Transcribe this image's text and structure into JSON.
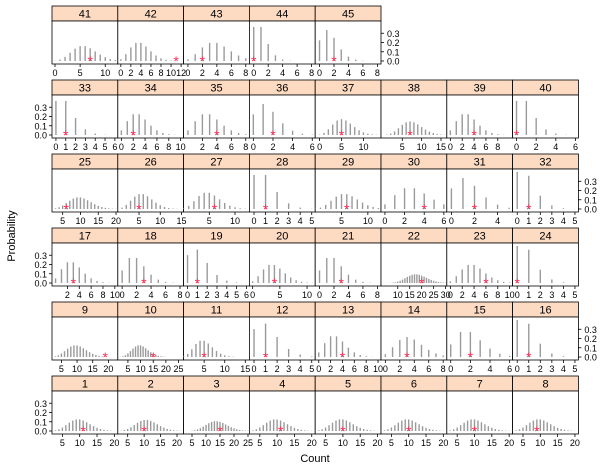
{
  "chart_data": {
    "type": "bar",
    "title": "",
    "xlabel": "Count",
    "ylabel": "Probability",
    "ylim": [
      0,
      0.4
    ],
    "y_ticks": [
      "0.0",
      "0.1",
      "0.2",
      "0.3"
    ],
    "strip_color": "#fddbc3",
    "bar_color": "#9a9a9a",
    "marker_color": "#ff2d55",
    "layout": "8 panels per row, 6 rows, top row has 5 panels",
    "panels": [
      {
        "id": "41",
        "mean": 6.0,
        "obs": 7,
        "xlim": [
          -0.6,
          12.5
        ],
        "xticks": [
          0,
          5,
          10
        ]
      },
      {
        "id": "42",
        "mean": 4.0,
        "obs": 11,
        "xlim": [
          -0.6,
          12.5
        ],
        "xticks": [
          0,
          2,
          4,
          6,
          8,
          10,
          12
        ]
      },
      {
        "id": "43",
        "mean": 4.0,
        "obs": 2,
        "xlim": [
          -0.6,
          8.5
        ],
        "xticks": [
          0,
          2,
          4,
          6,
          8
        ]
      },
      {
        "id": "44",
        "mean": 1.0,
        "obs": 0,
        "xlim": [
          -0.6,
          8.5
        ],
        "xticks": [
          0,
          2,
          4,
          6,
          8
        ]
      },
      {
        "id": "45",
        "mean": 1.5,
        "obs": 2,
        "xlim": [
          -0.6,
          8.5
        ],
        "xticks": [
          0,
          2,
          4,
          6,
          8
        ]
      },
      {
        "id": "33",
        "mean": 1.0,
        "obs": 1,
        "xlim": [
          -0.4,
          6.3
        ],
        "xticks": [
          0,
          1,
          2,
          3,
          4,
          5,
          6
        ]
      },
      {
        "id": "34",
        "mean": 3.0,
        "obs": 2,
        "xlim": [
          -0.6,
          10.5
        ],
        "xticks": [
          0,
          2,
          4,
          6,
          8,
          10
        ]
      },
      {
        "id": "35",
        "mean": 3.0,
        "obs": 4,
        "xlim": [
          -0.6,
          8.5
        ],
        "xticks": [
          2,
          4,
          6,
          8
        ]
      },
      {
        "id": "36",
        "mean": 1.5,
        "obs": 2,
        "xlim": [
          -0.4,
          6.3
        ],
        "xticks": [
          0,
          2,
          4,
          6
        ]
      },
      {
        "id": "37",
        "mean": 5.5,
        "obs": 5,
        "xlim": [
          -1.0,
          14.0
        ],
        "xticks": [
          0,
          5,
          10
        ]
      },
      {
        "id": "38",
        "mean": 7.5,
        "obs": 7,
        "xlim": [
          -0.5,
          16.5
        ],
        "xticks": [
          5,
          10,
          15
        ]
      },
      {
        "id": "39",
        "mean": 3.0,
        "obs": 4,
        "xlim": [
          -0.6,
          10.5
        ],
        "xticks": [
          0,
          2,
          4,
          6,
          8
        ]
      },
      {
        "id": "40",
        "mean": 1.0,
        "obs": 0,
        "xlim": [
          -0.4,
          6.3
        ],
        "xticks": [
          0,
          2,
          4,
          6
        ]
      },
      {
        "id": "25",
        "mean": 10.0,
        "obs": 6,
        "xlim": [
          2.0,
          20.5
        ],
        "xticks": [
          5,
          10,
          15,
          20
        ]
      },
      {
        "id": "26",
        "mean": 6.0,
        "obs": 5,
        "xlim": [
          0.0,
          15.5
        ],
        "xticks": [
          5,
          10,
          15
        ]
      },
      {
        "id": "27",
        "mean": 5.0,
        "obs": 6,
        "xlim": [
          0.0,
          12.8
        ],
        "xticks": [
          5,
          10
        ]
      },
      {
        "id": "28",
        "mean": 1.0,
        "obs": 1,
        "xlim": [
          -0.4,
          5.3
        ],
        "xticks": [
          0,
          1,
          2,
          3,
          4,
          5
        ]
      },
      {
        "id": "29",
        "mean": 6.0,
        "obs": 6,
        "xlim": [
          0.0,
          12.5
        ],
        "xticks": [
          5,
          10
        ]
      },
      {
        "id": "30",
        "mean": 3.0,
        "obs": 4,
        "xlim": [
          -0.4,
          6.3
        ],
        "xticks": [
          0,
          2,
          4,
          6
        ]
      },
      {
        "id": "31",
        "mean": 1.5,
        "obs": 2,
        "xlim": [
          -0.4,
          5.3
        ],
        "xticks": [
          0,
          2,
          4
        ]
      },
      {
        "id": "32",
        "mean": 0.8,
        "obs": 1,
        "xlim": [
          -0.4,
          5.3
        ],
        "xticks": [
          0,
          1,
          2,
          3,
          4,
          5
        ]
      },
      {
        "id": "17",
        "mean": 3.0,
        "obs": 3,
        "xlim": [
          -0.6,
          10.5
        ],
        "xticks": [
          2,
          4,
          6,
          8,
          10
        ]
      },
      {
        "id": "18",
        "mean": 2.0,
        "obs": 3,
        "xlim": [
          -0.6,
          8.5
        ],
        "xticks": [
          0,
          2,
          4,
          6,
          8
        ]
      },
      {
        "id": "19",
        "mean": 1.2,
        "obs": 1,
        "xlim": [
          -0.4,
          6.3
        ],
        "xticks": [
          0,
          1,
          2,
          3,
          4,
          5,
          6
        ]
      },
      {
        "id": "20",
        "mean": 4.0,
        "obs": 4,
        "xlim": [
          -0.6,
          11.5
        ],
        "xticks": [
          0,
          5,
          10
        ]
      },
      {
        "id": "21",
        "mean": 2.0,
        "obs": 3,
        "xlim": [
          -0.6,
          8.5
        ],
        "xticks": [
          0,
          2,
          4,
          6,
          8
        ]
      },
      {
        "id": "22",
        "mean": 18.0,
        "obs": 20,
        "xlim": [
          3.0,
          30.5
        ],
        "xticks": [
          10,
          15,
          20,
          25,
          30
        ]
      },
      {
        "id": "23",
        "mean": 4.0,
        "obs": 6,
        "xlim": [
          -0.6,
          10.5
        ],
        "xticks": [
          0,
          2,
          4,
          6,
          8,
          10
        ]
      },
      {
        "id": "24",
        "mean": 0.8,
        "obs": 0,
        "xlim": [
          -0.4,
          5.3
        ],
        "xticks": [
          0,
          1,
          2,
          3,
          4,
          5
        ]
      },
      {
        "id": "9",
        "mean": 10.0,
        "obs": 19,
        "xlim": [
          2.0,
          23.0
        ],
        "xticks": [
          5,
          10,
          15,
          20
        ]
      },
      {
        "id": "10",
        "mean": 10.0,
        "obs": 15,
        "xlim": [
          1.0,
          27.0
        ],
        "xticks": [
          5,
          10,
          15,
          20,
          25
        ]
      },
      {
        "id": "11",
        "mean": 5.0,
        "obs": 5,
        "xlim": [
          0.0,
          16.0
        ],
        "xticks": [
          5,
          10,
          15
        ]
      },
      {
        "id": "12",
        "mean": 1.2,
        "obs": 1,
        "xlim": [
          -0.4,
          5.3
        ],
        "xticks": [
          0,
          1,
          2,
          3,
          4,
          5
        ]
      },
      {
        "id": "13",
        "mean": 3.0,
        "obs": 4,
        "xlim": [
          -0.6,
          10.5
        ],
        "xticks": [
          0,
          2,
          4,
          6,
          8,
          10
        ]
      },
      {
        "id": "14",
        "mean": 3.5,
        "obs": 3,
        "xlim": [
          -0.6,
          8.5
        ],
        "xticks": [
          0,
          2,
          4,
          6,
          8
        ]
      },
      {
        "id": "15",
        "mean": 2.0,
        "obs": 2,
        "xlim": [
          -0.4,
          6.3
        ],
        "xticks": [
          0,
          2,
          4,
          6
        ]
      },
      {
        "id": "16",
        "mean": 0.8,
        "obs": 1,
        "xlim": [
          -0.4,
          5.3
        ],
        "xticks": [
          0,
          1,
          2,
          3,
          4,
          5
        ]
      },
      {
        "id": "1",
        "mean": 10.0,
        "obs": 11,
        "xlim": [
          2.0,
          21.0
        ],
        "xticks": [
          5,
          10,
          15,
          20
        ]
      },
      {
        "id": "2",
        "mean": 11.0,
        "obs": 10,
        "xlim": [
          2.0,
          22.0
        ],
        "xticks": [
          5,
          10,
          15,
          20
        ]
      },
      {
        "id": "3",
        "mean": 14.0,
        "obs": 15,
        "xlim": [
          2.0,
          25.5
        ],
        "xticks": [
          5,
          10,
          15,
          20,
          25
        ]
      },
      {
        "id": "4",
        "mean": 10.0,
        "obs": 11,
        "xlim": [
          2.0,
          21.0
        ],
        "xticks": [
          5,
          10,
          15,
          20
        ]
      },
      {
        "id": "5",
        "mean": 10.0,
        "obs": 10,
        "xlim": [
          2.0,
          21.0
        ],
        "xticks": [
          5,
          10,
          15,
          20
        ]
      },
      {
        "id": "6",
        "mean": 10.0,
        "obs": 10,
        "xlim": [
          2.0,
          21.0
        ],
        "xticks": [
          5,
          10,
          15,
          20
        ]
      },
      {
        "id": "7",
        "mean": 10.0,
        "obs": 10,
        "xlim": [
          2.0,
          21.0
        ],
        "xticks": [
          5,
          10,
          15,
          20
        ]
      },
      {
        "id": "8",
        "mean": 10.0,
        "obs": 9,
        "xlim": [
          2.0,
          21.0
        ],
        "xticks": [
          5,
          10,
          15,
          20
        ]
      }
    ]
  }
}
